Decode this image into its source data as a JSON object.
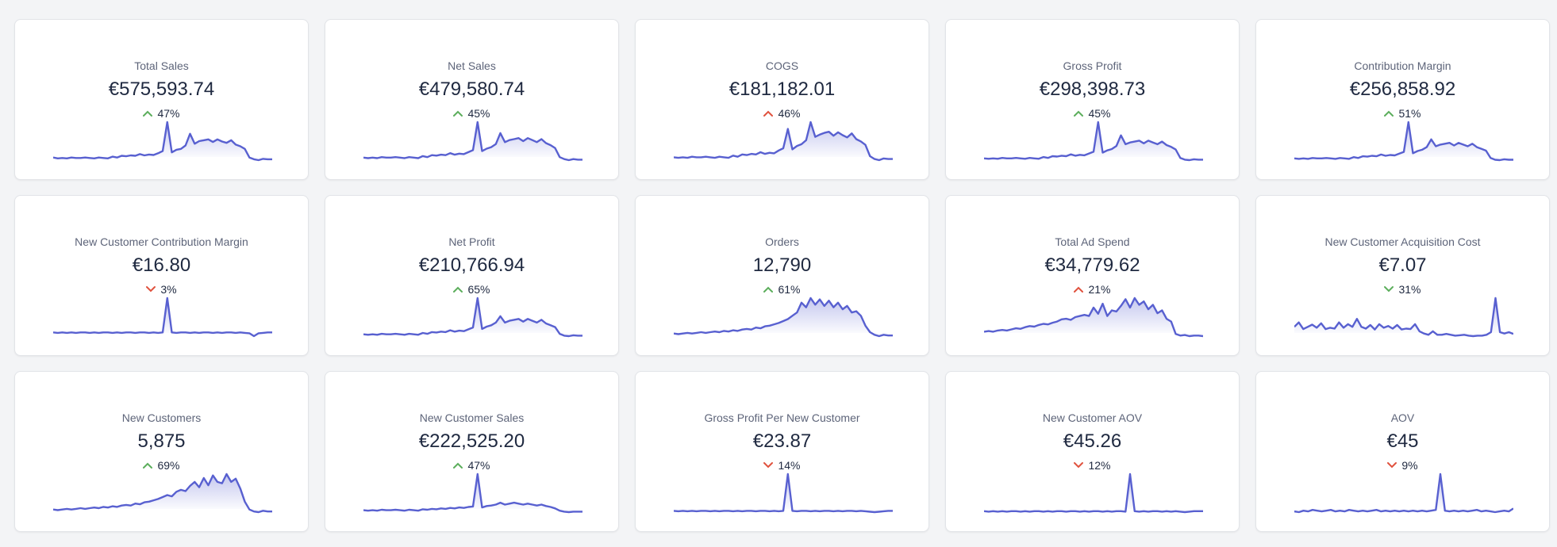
{
  "colors": {
    "line": "#5860d0",
    "up_good": "#5cae5c",
    "bad": "#e0523e"
  },
  "cards": [
    {
      "title": "Total Sales",
      "value": "€575,593.74",
      "direction": "up",
      "change": "47%",
      "sentiment": "good",
      "spark": [
        10,
        8,
        9,
        8,
        10,
        9,
        9,
        10,
        9,
        8,
        10,
        9,
        8,
        12,
        10,
        14,
        13,
        15,
        14,
        18,
        15,
        17,
        16,
        20,
        25,
        92,
        22,
        28,
        30,
        38,
        65,
        42,
        48,
        50,
        52,
        46,
        52,
        47,
        44,
        50,
        40,
        36,
        30,
        10,
        6,
        4,
        7,
        6,
        6
      ]
    },
    {
      "title": "Net Sales",
      "value": "€479,580.74",
      "direction": "up",
      "change": "45%",
      "sentiment": "good",
      "spark": [
        9,
        8,
        9,
        8,
        10,
        9,
        9,
        10,
        9,
        8,
        10,
        9,
        8,
        12,
        10,
        14,
        13,
        15,
        14,
        18,
        15,
        17,
        16,
        20,
        24,
        80,
        22,
        27,
        30,
        36,
        58,
        40,
        44,
        46,
        48,
        42,
        48,
        44,
        40,
        46,
        38,
        34,
        28,
        10,
        6,
        4,
        6,
        5,
        5
      ]
    },
    {
      "title": "COGS",
      "value": "€181,182.01",
      "direction": "up",
      "change": "46%",
      "sentiment": "bad",
      "spark": [
        10,
        9,
        10,
        9,
        11,
        10,
        10,
        11,
        10,
        9,
        11,
        10,
        9,
        13,
        11,
        15,
        14,
        16,
        15,
        19,
        16,
        18,
        17,
        22,
        26,
        60,
        24,
        30,
        33,
        40,
        72,
        46,
        50,
        53,
        55,
        48,
        54,
        49,
        45,
        52,
        42,
        38,
        32,
        12,
        7,
        5,
        8,
        7,
        7
      ]
    },
    {
      "title": "Gross Profit",
      "value": "€298,398.73",
      "direction": "up",
      "change": "45%",
      "sentiment": "good",
      "spark": [
        8,
        7,
        8,
        7,
        9,
        8,
        8,
        9,
        8,
        7,
        9,
        8,
        7,
        11,
        9,
        13,
        12,
        14,
        13,
        17,
        14,
        16,
        15,
        19,
        23,
        90,
        21,
        26,
        29,
        36,
        60,
        40,
        44,
        46,
        48,
        42,
        48,
        44,
        40,
        46,
        38,
        34,
        28,
        9,
        5,
        4,
        6,
        5,
        5
      ]
    },
    {
      "title": "Contribution Margin",
      "value": "€256,858.92",
      "direction": "up",
      "change": "51%",
      "sentiment": "good",
      "spark": [
        8,
        7,
        8,
        7,
        9,
        8,
        8,
        9,
        8,
        7,
        9,
        8,
        7,
        11,
        9,
        13,
        12,
        14,
        13,
        17,
        14,
        16,
        15,
        19,
        23,
        92,
        20,
        25,
        28,
        34,
        52,
        36,
        40,
        42,
        44,
        38,
        44,
        40,
        36,
        42,
        34,
        30,
        26,
        9,
        5,
        4,
        6,
        5,
        5
      ]
    },
    {
      "title": "New Customer Contribution Margin",
      "value": "€16.80",
      "direction": "down",
      "change": "3%",
      "sentiment": "bad",
      "spark": [
        12,
        11,
        12,
        11,
        12,
        11,
        12,
        12,
        11,
        12,
        11,
        12,
        12,
        11,
        12,
        11,
        12,
        12,
        11,
        12,
        12,
        11,
        12,
        11,
        12,
        85,
        12,
        11,
        12,
        12,
        11,
        12,
        11,
        12,
        12,
        11,
        12,
        11,
        12,
        12,
        11,
        12,
        11,
        10,
        4,
        10,
        11,
        12,
        12
      ]
    },
    {
      "title": "Net Profit",
      "value": "€210,766.94",
      "direction": "up",
      "change": "65%",
      "sentiment": "good",
      "spark": [
        8,
        7,
        8,
        7,
        9,
        8,
        8,
        9,
        8,
        7,
        9,
        8,
        7,
        11,
        9,
        13,
        12,
        14,
        13,
        17,
        14,
        16,
        15,
        19,
        23,
        88,
        20,
        25,
        28,
        34,
        48,
        34,
        38,
        40,
        42,
        36,
        42,
        38,
        34,
        40,
        32,
        28,
        24,
        9,
        5,
        4,
        6,
        5,
        5
      ]
    },
    {
      "title": "Orders",
      "value": "12,790",
      "direction": "up",
      "change": "61%",
      "sentiment": "good",
      "spark": [
        8,
        7,
        8,
        9,
        8,
        9,
        10,
        9,
        10,
        11,
        10,
        12,
        11,
        13,
        12,
        14,
        15,
        14,
        17,
        16,
        19,
        20,
        22,
        24,
        27,
        30,
        35,
        40,
        55,
        48,
        62,
        52,
        60,
        50,
        58,
        48,
        55,
        45,
        50,
        40,
        42,
        35,
        20,
        10,
        6,
        4,
        6,
        5,
        5
      ]
    },
    {
      "title": "Total Ad Spend",
      "value": "€34,779.62",
      "direction": "up",
      "change": "21%",
      "sentiment": "bad",
      "spark": [
        12,
        13,
        12,
        14,
        15,
        14,
        16,
        18,
        17,
        20,
        22,
        21,
        24,
        26,
        25,
        28,
        30,
        34,
        35,
        33,
        38,
        40,
        42,
        40,
        55,
        44,
        62,
        40,
        50,
        48,
        58,
        70,
        55,
        72,
        60,
        66,
        52,
        60,
        45,
        50,
        35,
        30,
        8,
        5,
        6,
        4,
        5,
        5,
        4
      ]
    },
    {
      "title": "New Customer Acquisition Cost",
      "value": "€7.07",
      "direction": "down",
      "change": "31%",
      "sentiment": "good",
      "spark": [
        30,
        40,
        25,
        30,
        35,
        28,
        38,
        25,
        28,
        26,
        40,
        28,
        36,
        30,
        48,
        30,
        26,
        34,
        24,
        36,
        28,
        32,
        26,
        34,
        24,
        26,
        25,
        36,
        20,
        15,
        12,
        20,
        12,
        12,
        14,
        12,
        10,
        11,
        12,
        10,
        9,
        10,
        10,
        12,
        18,
        95,
        18,
        15,
        18,
        14
      ]
    },
    {
      "title": "New Customers",
      "value": "5,875",
      "direction": "up",
      "change": "69%",
      "sentiment": "good",
      "spark": [
        8,
        7,
        8,
        9,
        8,
        9,
        10,
        9,
        10,
        11,
        10,
        12,
        11,
        13,
        12,
        14,
        15,
        14,
        17,
        16,
        19,
        20,
        22,
        24,
        27,
        30,
        28,
        35,
        38,
        36,
        44,
        50,
        42,
        56,
        45,
        60,
        50,
        48,
        62,
        50,
        55,
        40,
        20,
        8,
        5,
        4,
        6,
        5,
        5
      ]
    },
    {
      "title": "New Customer Sales",
      "value": "€222,525.20",
      "direction": "up",
      "change": "47%",
      "sentiment": "good",
      "spark": [
        8,
        7,
        8,
        7,
        9,
        8,
        8,
        9,
        8,
        7,
        9,
        8,
        7,
        10,
        9,
        11,
        10,
        12,
        11,
        13,
        12,
        14,
        13,
        15,
        16,
        85,
        14,
        17,
        18,
        20,
        24,
        20,
        22,
        24,
        22,
        20,
        22,
        20,
        18,
        20,
        17,
        15,
        12,
        7,
        5,
        4,
        5,
        5,
        5
      ]
    },
    {
      "title": "Gross Profit Per New Customer",
      "value": "€23.87",
      "direction": "down",
      "change": "14%",
      "sentiment": "bad",
      "spark": [
        10,
        9,
        10,
        9,
        10,
        9,
        10,
        10,
        9,
        10,
        9,
        10,
        10,
        9,
        10,
        9,
        10,
        10,
        9,
        10,
        10,
        9,
        10,
        9,
        10,
        95,
        10,
        9,
        10,
        10,
        9,
        10,
        9,
        10,
        10,
        9,
        10,
        9,
        10,
        10,
        9,
        10,
        9,
        8,
        7,
        8,
        9,
        10,
        10
      ]
    },
    {
      "title": "New Customer AOV",
      "value": "€45.26",
      "direction": "down",
      "change": "12%",
      "sentiment": "bad",
      "spark": [
        12,
        11,
        12,
        11,
        12,
        11,
        12,
        12,
        11,
        12,
        11,
        12,
        12,
        11,
        12,
        11,
        12,
        12,
        11,
        12,
        12,
        11,
        12,
        11,
        12,
        12,
        11,
        12,
        11,
        12,
        12,
        11,
        90,
        12,
        11,
        12,
        11,
        12,
        12,
        11,
        12,
        11,
        12,
        11,
        10,
        11,
        12,
        12,
        12
      ]
    },
    {
      "title": "AOV",
      "value": "€45",
      "direction": "down",
      "change": "9%",
      "sentiment": "bad",
      "spark": [
        14,
        13,
        15,
        14,
        16,
        15,
        14,
        15,
        16,
        14,
        15,
        14,
        16,
        15,
        14,
        15,
        14,
        15,
        16,
        14,
        15,
        14,
        15,
        14,
        15,
        14,
        15,
        14,
        15,
        14,
        15,
        16,
        65,
        15,
        14,
        15,
        14,
        15,
        14,
        15,
        16,
        14,
        15,
        14,
        13,
        14,
        15,
        14,
        18
      ]
    }
  ]
}
